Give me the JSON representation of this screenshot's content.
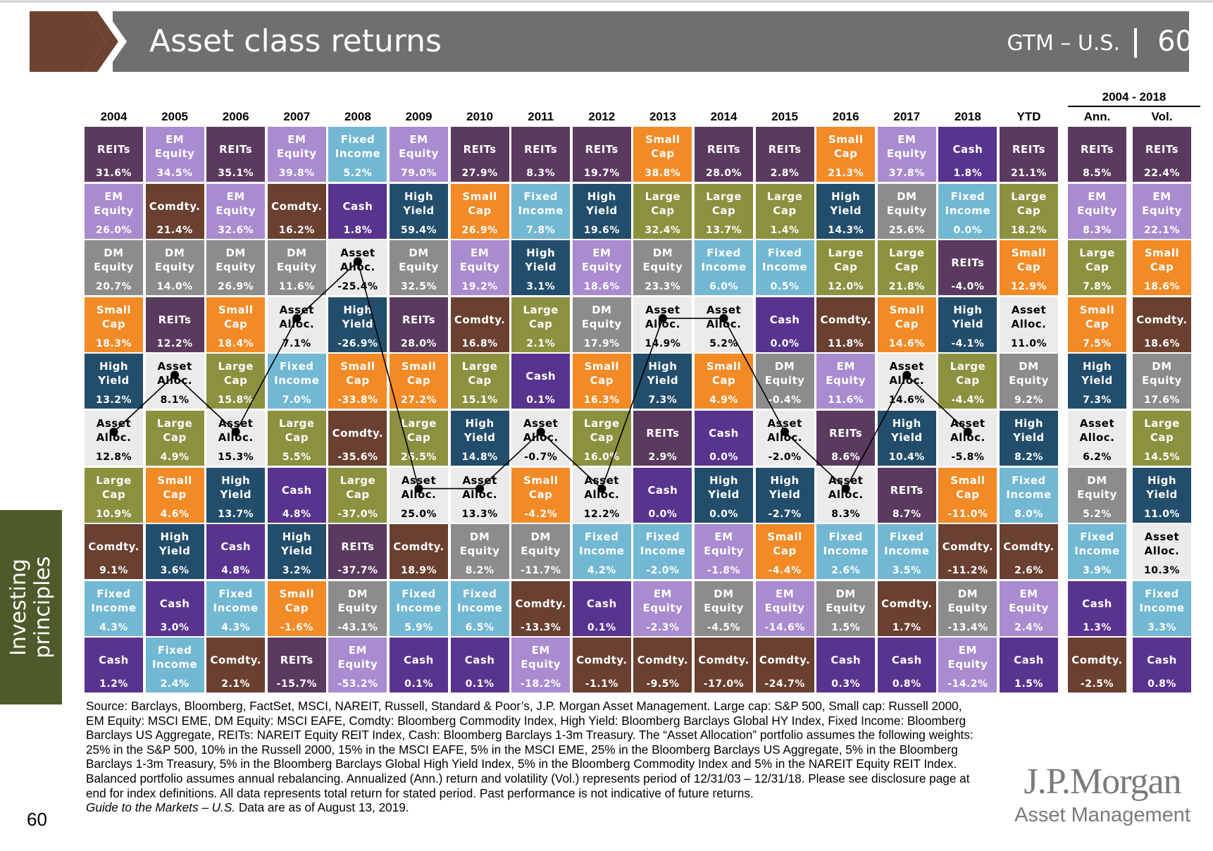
{
  "header": {
    "title": "Asset class returns",
    "code": "GTM – U.S.",
    "page": "60"
  },
  "sidebar": {
    "label_line1": "Investing",
    "label_line2": "principles"
  },
  "colors": {
    "REITs": "#5b3a5f",
    "EM Equity": "#a98bcf",
    "DM Equity": "#8c8c8c",
    "Small Cap": "#f28a26",
    "Large Cap": "#8c9140",
    "High Yield": "#224e6b",
    "Fixed Income": "#72b8d2",
    "Cash": "#59348f",
    "Comdty.": "#6a4030",
    "Asset Alloc.": "#ebebeb"
  },
  "chart_data": {
    "type": "table",
    "title": "Asset class returns",
    "range_header": "2004 - 2018",
    "columns": [
      "2004",
      "2005",
      "2006",
      "2007",
      "2008",
      "2009",
      "2010",
      "2011",
      "2012",
      "2013",
      "2014",
      "2015",
      "2016",
      "2017",
      "2018",
      "YTD",
      "Ann.",
      "Vol."
    ],
    "rows": [
      [
        [
          "REITs",
          "31.6%"
        ],
        [
          "EM Equity",
          "34.5%"
        ],
        [
          "REITs",
          "35.1%"
        ],
        [
          "EM Equity",
          "39.8%"
        ],
        [
          "Fixed Income",
          "5.2%"
        ],
        [
          "EM Equity",
          "79.0%"
        ],
        [
          "REITs",
          "27.9%"
        ],
        [
          "REITs",
          "8.3%"
        ],
        [
          "REITs",
          "19.7%"
        ],
        [
          "Small Cap",
          "38.8%"
        ],
        [
          "REITs",
          "28.0%"
        ],
        [
          "REITs",
          "2.8%"
        ],
        [
          "Small Cap",
          "21.3%"
        ],
        [
          "EM Equity",
          "37.8%"
        ],
        [
          "Cash",
          "1.8%"
        ],
        [
          "REITs",
          "21.1%"
        ],
        [
          "REITs",
          "8.5%"
        ],
        [
          "REITs",
          "22.4%"
        ]
      ],
      [
        [
          "EM Equity",
          "26.0%"
        ],
        [
          "Comdty.",
          "21.4%"
        ],
        [
          "EM Equity",
          "32.6%"
        ],
        [
          "Comdty.",
          "16.2%"
        ],
        [
          "Cash",
          "1.8%"
        ],
        [
          "High Yield",
          "59.4%"
        ],
        [
          "Small Cap",
          "26.9%"
        ],
        [
          "Fixed Income",
          "7.8%"
        ],
        [
          "High Yield",
          "19.6%"
        ],
        [
          "Large Cap",
          "32.4%"
        ],
        [
          "Large Cap",
          "13.7%"
        ],
        [
          "Large Cap",
          "1.4%"
        ],
        [
          "High Yield",
          "14.3%"
        ],
        [
          "DM Equity",
          "25.6%"
        ],
        [
          "Fixed Income",
          "0.0%"
        ],
        [
          "Large Cap",
          "18.2%"
        ],
        [
          "EM Equity",
          "8.3%"
        ],
        [
          "EM Equity",
          "22.1%"
        ]
      ],
      [
        [
          "DM Equity",
          "20.7%"
        ],
        [
          "DM Equity",
          "14.0%"
        ],
        [
          "DM Equity",
          "26.9%"
        ],
        [
          "DM Equity",
          "11.6%"
        ],
        [
          "Asset Alloc.",
          "-25.4%"
        ],
        [
          "DM Equity",
          "32.5%"
        ],
        [
          "EM Equity",
          "19.2%"
        ],
        [
          "High Yield",
          "3.1%"
        ],
        [
          "EM Equity",
          "18.6%"
        ],
        [
          "DM Equity",
          "23.3%"
        ],
        [
          "Fixed Income",
          "6.0%"
        ],
        [
          "Fixed Income",
          "0.5%"
        ],
        [
          "Large Cap",
          "12.0%"
        ],
        [
          "Large Cap",
          "21.8%"
        ],
        [
          "REITs",
          "-4.0%"
        ],
        [
          "Small Cap",
          "12.9%"
        ],
        [
          "Large Cap",
          "7.8%"
        ],
        [
          "Small Cap",
          "18.6%"
        ]
      ],
      [
        [
          "Small Cap",
          "18.3%"
        ],
        [
          "REITs",
          "12.2%"
        ],
        [
          "Small Cap",
          "18.4%"
        ],
        [
          "Asset Alloc.",
          "7.1%"
        ],
        [
          "High Yield",
          "-26.9%"
        ],
        [
          "REITs",
          "28.0%"
        ],
        [
          "Comdty.",
          "16.8%"
        ],
        [
          "Large Cap",
          "2.1%"
        ],
        [
          "DM Equity",
          "17.9%"
        ],
        [
          "Asset Alloc.",
          "14.9%"
        ],
        [
          "Asset Alloc.",
          "5.2%"
        ],
        [
          "Cash",
          "0.0%"
        ],
        [
          "Comdty.",
          "11.8%"
        ],
        [
          "Small Cap",
          "14.6%"
        ],
        [
          "High Yield",
          "-4.1%"
        ],
        [
          "Asset Alloc.",
          "11.0%"
        ],
        [
          "Small Cap",
          "7.5%"
        ],
        [
          "Comdty.",
          "18.6%"
        ]
      ],
      [
        [
          "High Yield",
          "13.2%"
        ],
        [
          "Asset Alloc.",
          "8.1%"
        ],
        [
          "Large Cap",
          "15.8%"
        ],
        [
          "Fixed Income",
          "7.0%"
        ],
        [
          "Small Cap",
          "-33.8%"
        ],
        [
          "Small Cap",
          "27.2%"
        ],
        [
          "Large Cap",
          "15.1%"
        ],
        [
          "Cash",
          "0.1%"
        ],
        [
          "Small Cap",
          "16.3%"
        ],
        [
          "High Yield",
          "7.3%"
        ],
        [
          "Small Cap",
          "4.9%"
        ],
        [
          "DM Equity",
          "-0.4%"
        ],
        [
          "EM Equity",
          "11.6%"
        ],
        [
          "Asset Alloc.",
          "14.6%"
        ],
        [
          "Large Cap",
          "-4.4%"
        ],
        [
          "DM Equity",
          "9.2%"
        ],
        [
          "High Yield",
          "7.3%"
        ],
        [
          "DM Equity",
          "17.6%"
        ]
      ],
      [
        [
          "Asset Alloc.",
          "12.8%"
        ],
        [
          "Large Cap",
          "4.9%"
        ],
        [
          "Asset Alloc.",
          "15.3%"
        ],
        [
          "Large Cap",
          "5.5%"
        ],
        [
          "Comdty.",
          "-35.6%"
        ],
        [
          "Large Cap",
          "26.5%"
        ],
        [
          "High Yield",
          "14.8%"
        ],
        [
          "Asset Alloc.",
          "-0.7%"
        ],
        [
          "Large Cap",
          "16.0%"
        ],
        [
          "REITs",
          "2.9%"
        ],
        [
          "Cash",
          "0.0%"
        ],
        [
          "Asset Alloc.",
          "-2.0%"
        ],
        [
          "REITs",
          "8.6%"
        ],
        [
          "High Yield",
          "10.4%"
        ],
        [
          "Asset Alloc.",
          "-5.8%"
        ],
        [
          "High Yield",
          "8.2%"
        ],
        [
          "Asset Alloc.",
          "6.2%"
        ],
        [
          "Large Cap",
          "14.5%"
        ]
      ],
      [
        [
          "Large Cap",
          "10.9%"
        ],
        [
          "Small Cap",
          "4.6%"
        ],
        [
          "High Yield",
          "13.7%"
        ],
        [
          "Cash",
          "4.8%"
        ],
        [
          "Large Cap",
          "-37.0%"
        ],
        [
          "Asset Alloc.",
          "25.0%"
        ],
        [
          "Asset Alloc.",
          "13.3%"
        ],
        [
          "Small Cap",
          "-4.2%"
        ],
        [
          "Asset Alloc.",
          "12.2%"
        ],
        [
          "Cash",
          "0.0%"
        ],
        [
          "High Yield",
          "0.0%"
        ],
        [
          "High Yield",
          "-2.7%"
        ],
        [
          "Asset Alloc.",
          "8.3%"
        ],
        [
          "REITs",
          "8.7%"
        ],
        [
          "Small Cap",
          "-11.0%"
        ],
        [
          "Fixed Income",
          "8.0%"
        ],
        [
          "DM Equity",
          "5.2%"
        ],
        [
          "High Yield",
          "11.0%"
        ]
      ],
      [
        [
          "Comdty.",
          "9.1%"
        ],
        [
          "High Yield",
          "3.6%"
        ],
        [
          "Cash",
          "4.8%"
        ],
        [
          "High Yield",
          "3.2%"
        ],
        [
          "REITs",
          "-37.7%"
        ],
        [
          "Comdty.",
          "18.9%"
        ],
        [
          "DM Equity",
          "8.2%"
        ],
        [
          "DM Equity",
          "-11.7%"
        ],
        [
          "Fixed Income",
          "4.2%"
        ],
        [
          "Fixed Income",
          "-2.0%"
        ],
        [
          "EM Equity",
          "-1.8%"
        ],
        [
          "Small Cap",
          "-4.4%"
        ],
        [
          "Fixed Income",
          "2.6%"
        ],
        [
          "Fixed Income",
          "3.5%"
        ],
        [
          "Comdty.",
          "-11.2%"
        ],
        [
          "Comdty.",
          "2.6%"
        ],
        [
          "Fixed Income",
          "3.9%"
        ],
        [
          "Asset Alloc.",
          "10.3%"
        ]
      ],
      [
        [
          "Fixed Income",
          "4.3%"
        ],
        [
          "Cash",
          "3.0%"
        ],
        [
          "Fixed Income",
          "4.3%"
        ],
        [
          "Small Cap",
          "-1.6%"
        ],
        [
          "DM Equity",
          "-43.1%"
        ],
        [
          "Fixed Income",
          "5.9%"
        ],
        [
          "Fixed Income",
          "6.5%"
        ],
        [
          "Comdty.",
          "-13.3%"
        ],
        [
          "Cash",
          "0.1%"
        ],
        [
          "EM Equity",
          "-2.3%"
        ],
        [
          "DM Equity",
          "-4.5%"
        ],
        [
          "EM Equity",
          "-14.6%"
        ],
        [
          "DM Equity",
          "1.5%"
        ],
        [
          "Comdty.",
          "1.7%"
        ],
        [
          "DM Equity",
          "-13.4%"
        ],
        [
          "EM Equity",
          "2.4%"
        ],
        [
          "Cash",
          "1.3%"
        ],
        [
          "Fixed Income",
          "3.3%"
        ]
      ],
      [
        [
          "Cash",
          "1.2%"
        ],
        [
          "Fixed Income",
          "2.4%"
        ],
        [
          "Comdty.",
          "2.1%"
        ],
        [
          "REITs",
          "-15.7%"
        ],
        [
          "EM Equity",
          "-53.2%"
        ],
        [
          "Cash",
          "0.1%"
        ],
        [
          "Cash",
          "0.1%"
        ],
        [
          "EM Equity",
          "-18.2%"
        ],
        [
          "Comdty.",
          "-1.1%"
        ],
        [
          "Comdty.",
          "-9.5%"
        ],
        [
          "Comdty.",
          "-17.0%"
        ],
        [
          "Comdty.",
          "-24.7%"
        ],
        [
          "Cash",
          "0.3%"
        ],
        [
          "Cash",
          "0.8%"
        ],
        [
          "EM Equity",
          "-14.2%"
        ],
        [
          "Cash",
          "1.5%"
        ],
        [
          "Comdty.",
          "-2.5%"
        ],
        [
          "Cash",
          "0.8%"
        ]
      ]
    ],
    "asset_alloc_rank": [
      6,
      5,
      6,
      4,
      3,
      7,
      7,
      6,
      7,
      4,
      4,
      6,
      7,
      5,
      6
    ]
  },
  "footer": {
    "text": "Source: Barclays, Bloomberg, FactSet, MSCI, NAREIT, Russell, Standard & Poor’s, J.P. Morgan Asset Management. Large cap: S&P 500, Small cap: Russell 2000, EM Equity: MSCI EME, DM Equity: MSCI EAFE, Comdty: Bloomberg Commodity Index, High Yield: Bloomberg Barclays Global HY Index, Fixed Income: Bloomberg Barclays US Aggregate, REITs: NAREIT Equity REIT Index, Cash: Bloomberg Barclays 1-3m Treasury. The “Asset Allocation” portfolio assumes the following weights: 25% in the S&P 500, 10% in the Russell 2000, 15% in the MSCI EAFE, 5% in the MSCI EME, 25% in the Bloomberg Barclays US Aggregate, 5% in the Bloomberg Barclays 1-3m Treasury, 5% in the Bloomberg Barclays Global High Yield Index, 5% in the Bloomberg Commodity Index and 5% in the NAREIT Equity REIT Index. Balanced portfolio assumes annual rebalancing. Annualized (Ann.) return and volatility (Vol.) represents period of 12/31/03 – 12/31/18. Please see disclosure page at end for index definitions. All data represents total return for stated period. Past performance is not indicative of future returns.",
    "guide_italic": "Guide to the Markets – U.S.",
    "guide_rest": " Data are as of August 13, 2019.",
    "page_number": "60"
  },
  "logo": {
    "main": "J.P.Morgan",
    "sub": "Asset Management"
  }
}
